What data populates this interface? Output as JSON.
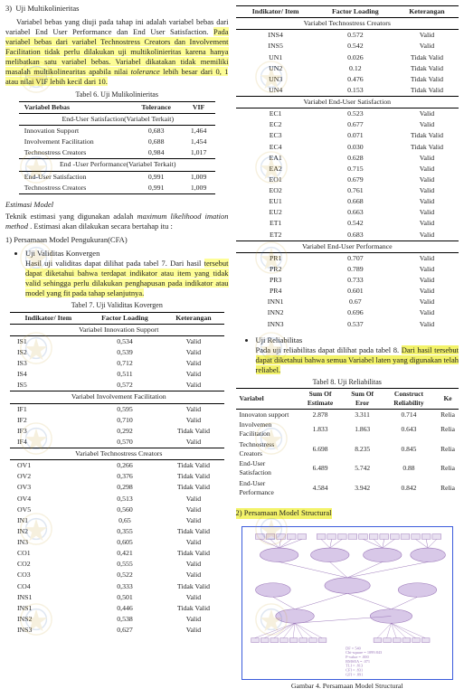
{
  "left": {
    "sec3_num": "3)",
    "sec3_title": "Uji Multikolinieritas",
    "sec3_p": "Variabel bebas yang diuji pada tahap ini adalah variabel bebas dari variabel End User Performance dan End User Satisfaction. ",
    "sec3_p_hl": "Pada variabel bebas dari variabel Technostress Creators dan Involvement Facilitation tidak perlu dilakukan uji multikolinieritas karena hanya melibatkan satu variabel bebas. Variabel dikatakan tidak memiliki masalah multikolinearitas apabila nilai ",
    "sec3_tol": "tolerance",
    "sec3_p2": " lebih besar dari 0, 1 atau nilai VIF lebih kecil dari 10.",
    "tbl6_cap": "Tabel 6. Uji Mulikolinieritas",
    "tbl6_h1": "Variabel Bebas",
    "tbl6_h2": "Tolerance",
    "tbl6_h3": "VIF",
    "tbl6_g1": "End-User Satisfaction(Variabel Terkait)",
    "tbl6_g2": "End -User Performance(Variabel Terkait)",
    "tbl6_rows1": [
      [
        "Innovation Support",
        "0,683",
        "1,464"
      ],
      [
        "Involvement Facilitation",
        "0,688",
        "1,454"
      ],
      [
        "Technostress Creators",
        "0,984",
        "1,017"
      ]
    ],
    "tbl6_rows2": [
      [
        "End-User Satisfaction",
        "0,991",
        "1,009"
      ],
      [
        "Technostress Creators",
        "0,991",
        "1,009"
      ]
    ],
    "est_title": "Estimasi Model",
    "est_p1a": "Teknik estimasi yang digunakan adalah ",
    "est_p1_it": "maximum likelihood imation method",
    "est_p1b": " . Estimasi akan dilakukan secara bertahap itu :",
    "pm1_num": "1)",
    "pm1_title": "Persamaan Model Pengukuran(CFA)",
    "pm1_b1": "Uji Validitas Konvergen",
    "pm1_b1_p": "Hasil uji validitas dapat dilihat pada tabel 7. Dari hasil ",
    "pm1_b1_hl": "tersebut dapat diketahui bahwa terdapat indikator atau item yang tidak valid sehingga perlu dilakukan penghapusan pada indikator atau model yang fit pada tahap selanjutnya.",
    "tbl7_cap": "Tabel 7.  Uji  Validitas  Kovergen",
    "tbl7_h1": "Indikator/ Item",
    "tbl7_h2": "Factor Loading",
    "tbl7_h3": "Keterangan",
    "tbl7_g1": "Variabel Innovation Support",
    "tbl7_g2": "Variabel Involvement Facilitation",
    "tbl7_g3": "Variabel Technostress Creators",
    "tbl7_r1": [
      [
        "IS1",
        "0,534",
        "Valid"
      ],
      [
        "IS2",
        "0,539",
        "Valid"
      ],
      [
        "IS3",
        "0,712",
        "Valid"
      ],
      [
        "IS4",
        "0,511",
        "Valid"
      ],
      [
        "IS5",
        "0,572",
        "Valid"
      ]
    ],
    "tbl7_r2": [
      [
        "IF1",
        "0,595",
        "Valid"
      ],
      [
        "IF2",
        "0,710",
        "Valid"
      ],
      [
        "IF3",
        "0,292",
        "Tidak Valid"
      ],
      [
        "IF4",
        "0,570",
        "Valid"
      ]
    ],
    "tbl7_r3": [
      [
        "OV1",
        "0,266",
        "Tidak Valid"
      ],
      [
        "OV2",
        "0,376",
        "Tidak Valid"
      ],
      [
        "OV3",
        "0,298",
        "Tidak Valid"
      ],
      [
        "OV4",
        "0,513",
        "Valid"
      ],
      [
        "OV5",
        "0,560",
        "Valid"
      ],
      [
        "IN1",
        "0,65",
        "Valid"
      ],
      [
        "IN2",
        "0,355",
        "Tidak Valid"
      ],
      [
        "IN3",
        "0,605",
        "Valid"
      ],
      [
        "CO1",
        "0,421",
        "Tidak Valid"
      ],
      [
        "CO2",
        "0,555",
        "Valid"
      ],
      [
        "CO3",
        "0,522",
        "Valid"
      ],
      [
        "CO4",
        "0,333",
        "Tidak Valid"
      ],
      [
        "INS1",
        "0,501",
        "Valid"
      ],
      [
        "INS1",
        "0,446",
        "Tidak Valid"
      ],
      [
        "INS2",
        "0,538",
        "Valid"
      ],
      [
        "INS3",
        "0,627",
        "Valid"
      ]
    ]
  },
  "right": {
    "tbl7b_h1": "Indikator/ Item",
    "tbl7b_h2": "Factor Loading",
    "tbl7b_h3": "Keterangan",
    "tbl7b_g1": "Variabel Technostress Creators",
    "tbl7b_g2": "Variabel End-User Satisfaction",
    "tbl7b_g3": "Variabel End-User Performance",
    "tbl7b_r1": [
      [
        "INS4",
        "0.572",
        "Valid"
      ],
      [
        "INS5",
        "0.542",
        "Valid"
      ],
      [
        "UN1",
        "0.026",
        "Tidak Valid"
      ],
      [
        "UN2",
        "0.12",
        "Tidak Valid"
      ],
      [
        "UN3",
        "0.476",
        "Tidak Valid"
      ],
      [
        "UN4",
        "0.153",
        "Tidak Valid"
      ]
    ],
    "tbl7b_r2": [
      [
        "EC1",
        "0.523",
        "Valid"
      ],
      [
        "EC2",
        "0.677",
        "Valid"
      ],
      [
        "EC3",
        "0.071",
        "Tidak Valid"
      ],
      [
        "EC4",
        "0.030",
        "Tidak Valid"
      ],
      [
        "EA1",
        "0.628",
        "Valid"
      ],
      [
        "EA2",
        "0.715",
        "Valid"
      ],
      [
        "EO1",
        "0.679",
        "Valid"
      ],
      [
        "EO2",
        "0.761",
        "Valid"
      ],
      [
        "EU1",
        "0.668",
        "Valid"
      ],
      [
        "EU2",
        "0.663",
        "Valid"
      ],
      [
        "ET1",
        "0.542",
        "Valid"
      ],
      [
        "ET2",
        "0.683",
        "Valid"
      ]
    ],
    "tbl7b_r3": [
      [
        "PR1",
        "0.707",
        "Valid"
      ],
      [
        "PR2",
        "0.789",
        "Valid"
      ],
      [
        "PR3",
        "0.733",
        "Valid"
      ],
      [
        "PR4",
        "0.601",
        "Valid"
      ],
      [
        "INN1",
        "0.67",
        "Valid"
      ],
      [
        "INN2",
        "0.696",
        "Valid"
      ],
      [
        "INN3",
        "0.537",
        "Valid"
      ]
    ],
    "ur_b": "Uji Reliabilitas",
    "ur_p": "Pada uji reliabilitas dapat dilihat pada tabel 8. ",
    "ur_hl": "Dari hasil tersebut dapat diketahui bahwa semua Variabel laten yang digunakan telah reliabel.",
    "tbl8_cap": "Tabel 8. Uji Reliabilitas",
    "tbl8_h1": "Variabel",
    "tbl8_h2": "Sum Of Estimate",
    "tbl8_h3": "Sum Of Eror",
    "tbl8_h4": "Construct Reliability",
    "tbl8_h5": "Ke",
    "tbl8_rows": [
      [
        "Innovaton support",
        "2.878",
        "3.311",
        "0.714",
        "Relia"
      ],
      [
        "Involvemen Facilitation",
        "1.833",
        "1.863",
        "0.643",
        "Relia"
      ],
      [
        "Technostress Creators",
        "6.698",
        "8.235",
        "0.845",
        "Relia"
      ],
      [
        "End-User Satisfaction",
        "6.489",
        "5.742",
        "0.88",
        "Relia"
      ],
      [
        "End-User Performance",
        "4.584",
        "3.942",
        "0.842",
        "Relia"
      ]
    ],
    "pm2_num": "2)",
    "pm2_title": "Persamaan Model Structural",
    "fig_cap": "Gambar 4.  Persamaan Model Structural",
    "sem": {
      "latent_color": "#d8c8e8",
      "indicator_color": "#e8e0f0",
      "line_color": "#9a76b8",
      "border": "#3b5bdb",
      "fit_text": [
        "DF = 540",
        "Chi-square = 1099.843",
        "P-value = .000",
        "RMSEA = .071",
        "TLI = .813",
        "CFI = .831",
        "GFI = .891"
      ]
    }
  }
}
